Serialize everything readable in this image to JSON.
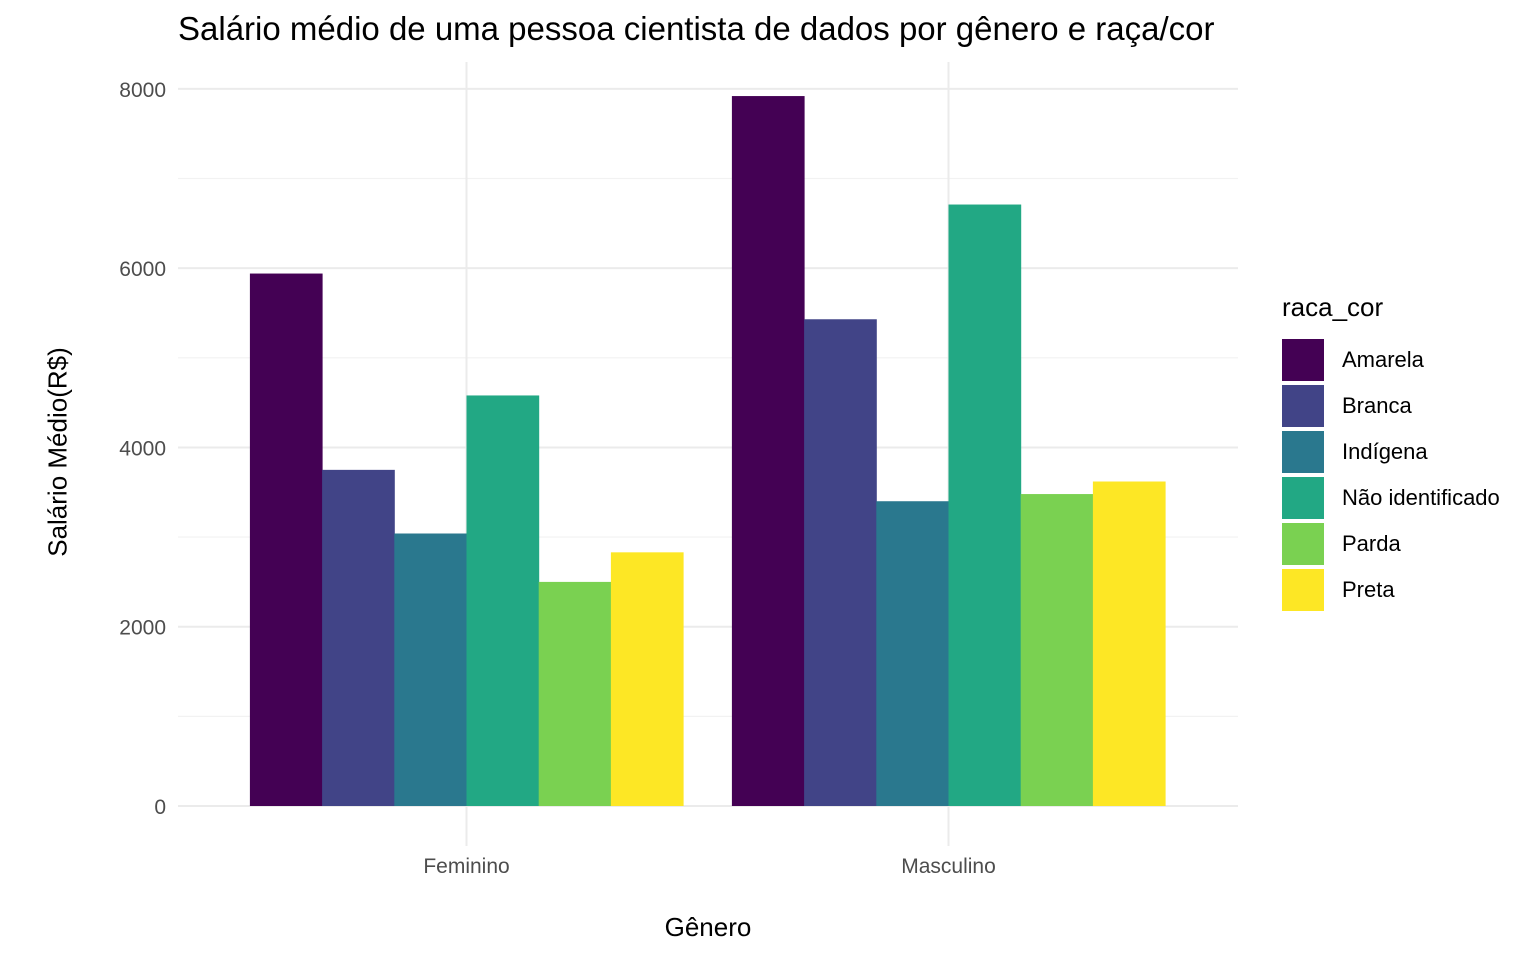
{
  "chart_data": {
    "type": "bar",
    "title": "Salário médio de uma pessoa cientista de dados por gênero e raça/cor",
    "xlabel": "Gênero",
    "ylabel": "Salário Médio(R$)",
    "legend_title": "raca_cor",
    "legend_position": "right",
    "grid": true,
    "ylim": [
      0,
      8300
    ],
    "yticks": [
      0,
      2000,
      4000,
      6000,
      8000
    ],
    "categories": [
      "Feminino",
      "Masculino"
    ],
    "series": [
      {
        "name": "Amarela",
        "color": "#440154",
        "values": [
          5940,
          7920
        ]
      },
      {
        "name": "Branca",
        "color": "#414487",
        "values": [
          3750,
          5430
        ]
      },
      {
        "name": "Indígena",
        "color": "#2A788E",
        "values": [
          3040,
          3400
        ]
      },
      {
        "name": "Não identificado",
        "color": "#22A884",
        "values": [
          4580,
          6710
        ]
      },
      {
        "name": "Parda",
        "color": "#7AD151",
        "values": [
          2500,
          3480
        ]
      },
      {
        "name": "Preta",
        "color": "#FDE725",
        "values": [
          2830,
          3620
        ]
      }
    ]
  }
}
